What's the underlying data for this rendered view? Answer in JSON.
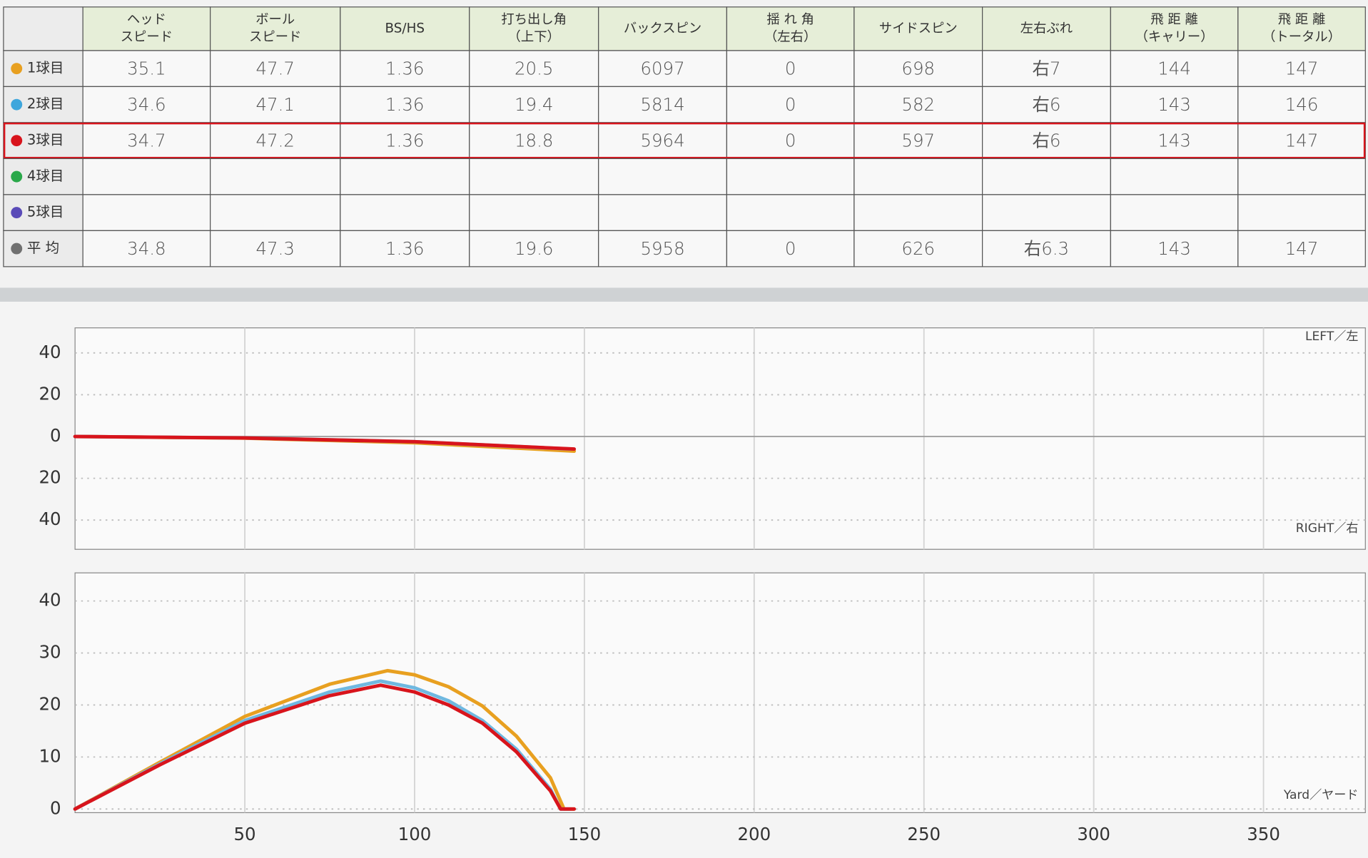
{
  "table": {
    "header": [
      [
        "ヘッド",
        "スピード"
      ],
      [
        "ボール",
        "スピード"
      ],
      [
        "BS/HS"
      ],
      [
        "打ち出し角",
        "（上下）"
      ],
      [
        "バックスピン"
      ],
      [
        "揺 れ 角",
        "（左右）"
      ],
      [
        "サイドスピン"
      ],
      [
        "左右ぶれ"
      ],
      [
        "飛 距 離",
        "（キャリー）"
      ],
      [
        "飛 距 離",
        "（トータル）"
      ]
    ],
    "rows": [
      {
        "label": "1球目",
        "color": "#e8a020",
        "cells": [
          35.1,
          47.7,
          1.36,
          20.5,
          6097,
          0,
          698,
          "右7",
          144,
          147
        ]
      },
      {
        "label": "2球目",
        "color": "#3ea6dc",
        "cells": [
          34.6,
          47.1,
          1.36,
          19.4,
          5814,
          0,
          582,
          "右6",
          143,
          146
        ]
      },
      {
        "label": "3球目",
        "color": "#d8141c",
        "highlighted": true,
        "cells": [
          34.7,
          47.2,
          1.36,
          18.8,
          5964,
          0,
          597,
          "右6",
          143,
          147
        ]
      },
      {
        "label": "4球目",
        "color": "#2aa84a",
        "cells": []
      },
      {
        "label": "5球目",
        "color": "#5a4bb8",
        "cells": []
      },
      {
        "label": "平 均",
        "color": "#707070",
        "cells": [
          34.8,
          47.3,
          1.36,
          19.6,
          5958,
          0,
          626,
          "右6.3",
          143,
          147
        ]
      }
    ]
  },
  "chart_data": [
    {
      "type": "line",
      "annotations": [
        "LEFT／左",
        "RIGHT／右"
      ],
      "xlim": [
        0,
        380
      ],
      "ylim": [
        -54,
        52
      ],
      "yticks": [
        {
          "value": 40,
          "label": "40"
        },
        {
          "value": 20,
          "label": "20"
        },
        0,
        {
          "value": -20,
          "label": "20"
        },
        {
          "value": -40,
          "label": "40"
        }
      ],
      "series": [
        {
          "color": "#e8a020",
          "x": [
            0,
            50,
            100,
            147
          ],
          "values": [
            0,
            -0.8,
            -3,
            -7
          ]
        },
        {
          "color": "#6fb8e0",
          "x": [
            0,
            50,
            100,
            146
          ],
          "values": [
            0,
            -0.7,
            -2.5,
            -6
          ]
        },
        {
          "color": "#d8141c",
          "x": [
            0,
            50,
            100,
            147
          ],
          "values": [
            0,
            -0.7,
            -2.5,
            -6
          ]
        }
      ]
    },
    {
      "type": "line",
      "annotations": [
        "Yard／ヤード"
      ],
      "xlim": [
        0,
        380
      ],
      "ylim": [
        -0.7,
        45.4
      ],
      "xticks": [
        50,
        100,
        150,
        200,
        250,
        300,
        350
      ],
      "yticks": [
        0,
        10,
        20,
        30,
        40
      ],
      "series": [
        {
          "color": "#e8a020",
          "x": [
            0,
            25,
            50,
            75,
            92,
            100,
            110,
            120,
            130,
            140,
            144,
            147
          ],
          "values": [
            0,
            9,
            17.8,
            24,
            26.6,
            25.8,
            23.5,
            19.8,
            14,
            6,
            0,
            0
          ]
        },
        {
          "color": "#6fb8e0",
          "x": [
            0,
            25,
            50,
            75,
            90,
            100,
            110,
            120,
            130,
            140,
            143,
            146
          ],
          "values": [
            0,
            8.7,
            17,
            22.5,
            24.6,
            23.3,
            20.8,
            17,
            11.5,
            3.8,
            0,
            0
          ]
        },
        {
          "color": "#d8141c",
          "x": [
            0,
            25,
            50,
            75,
            90,
            100,
            110,
            120,
            130,
            140,
            143,
            147
          ],
          "values": [
            0,
            8.5,
            16.5,
            21.8,
            23.8,
            22.5,
            20,
            16.5,
            11,
            3.5,
            0,
            0
          ]
        }
      ]
    }
  ]
}
